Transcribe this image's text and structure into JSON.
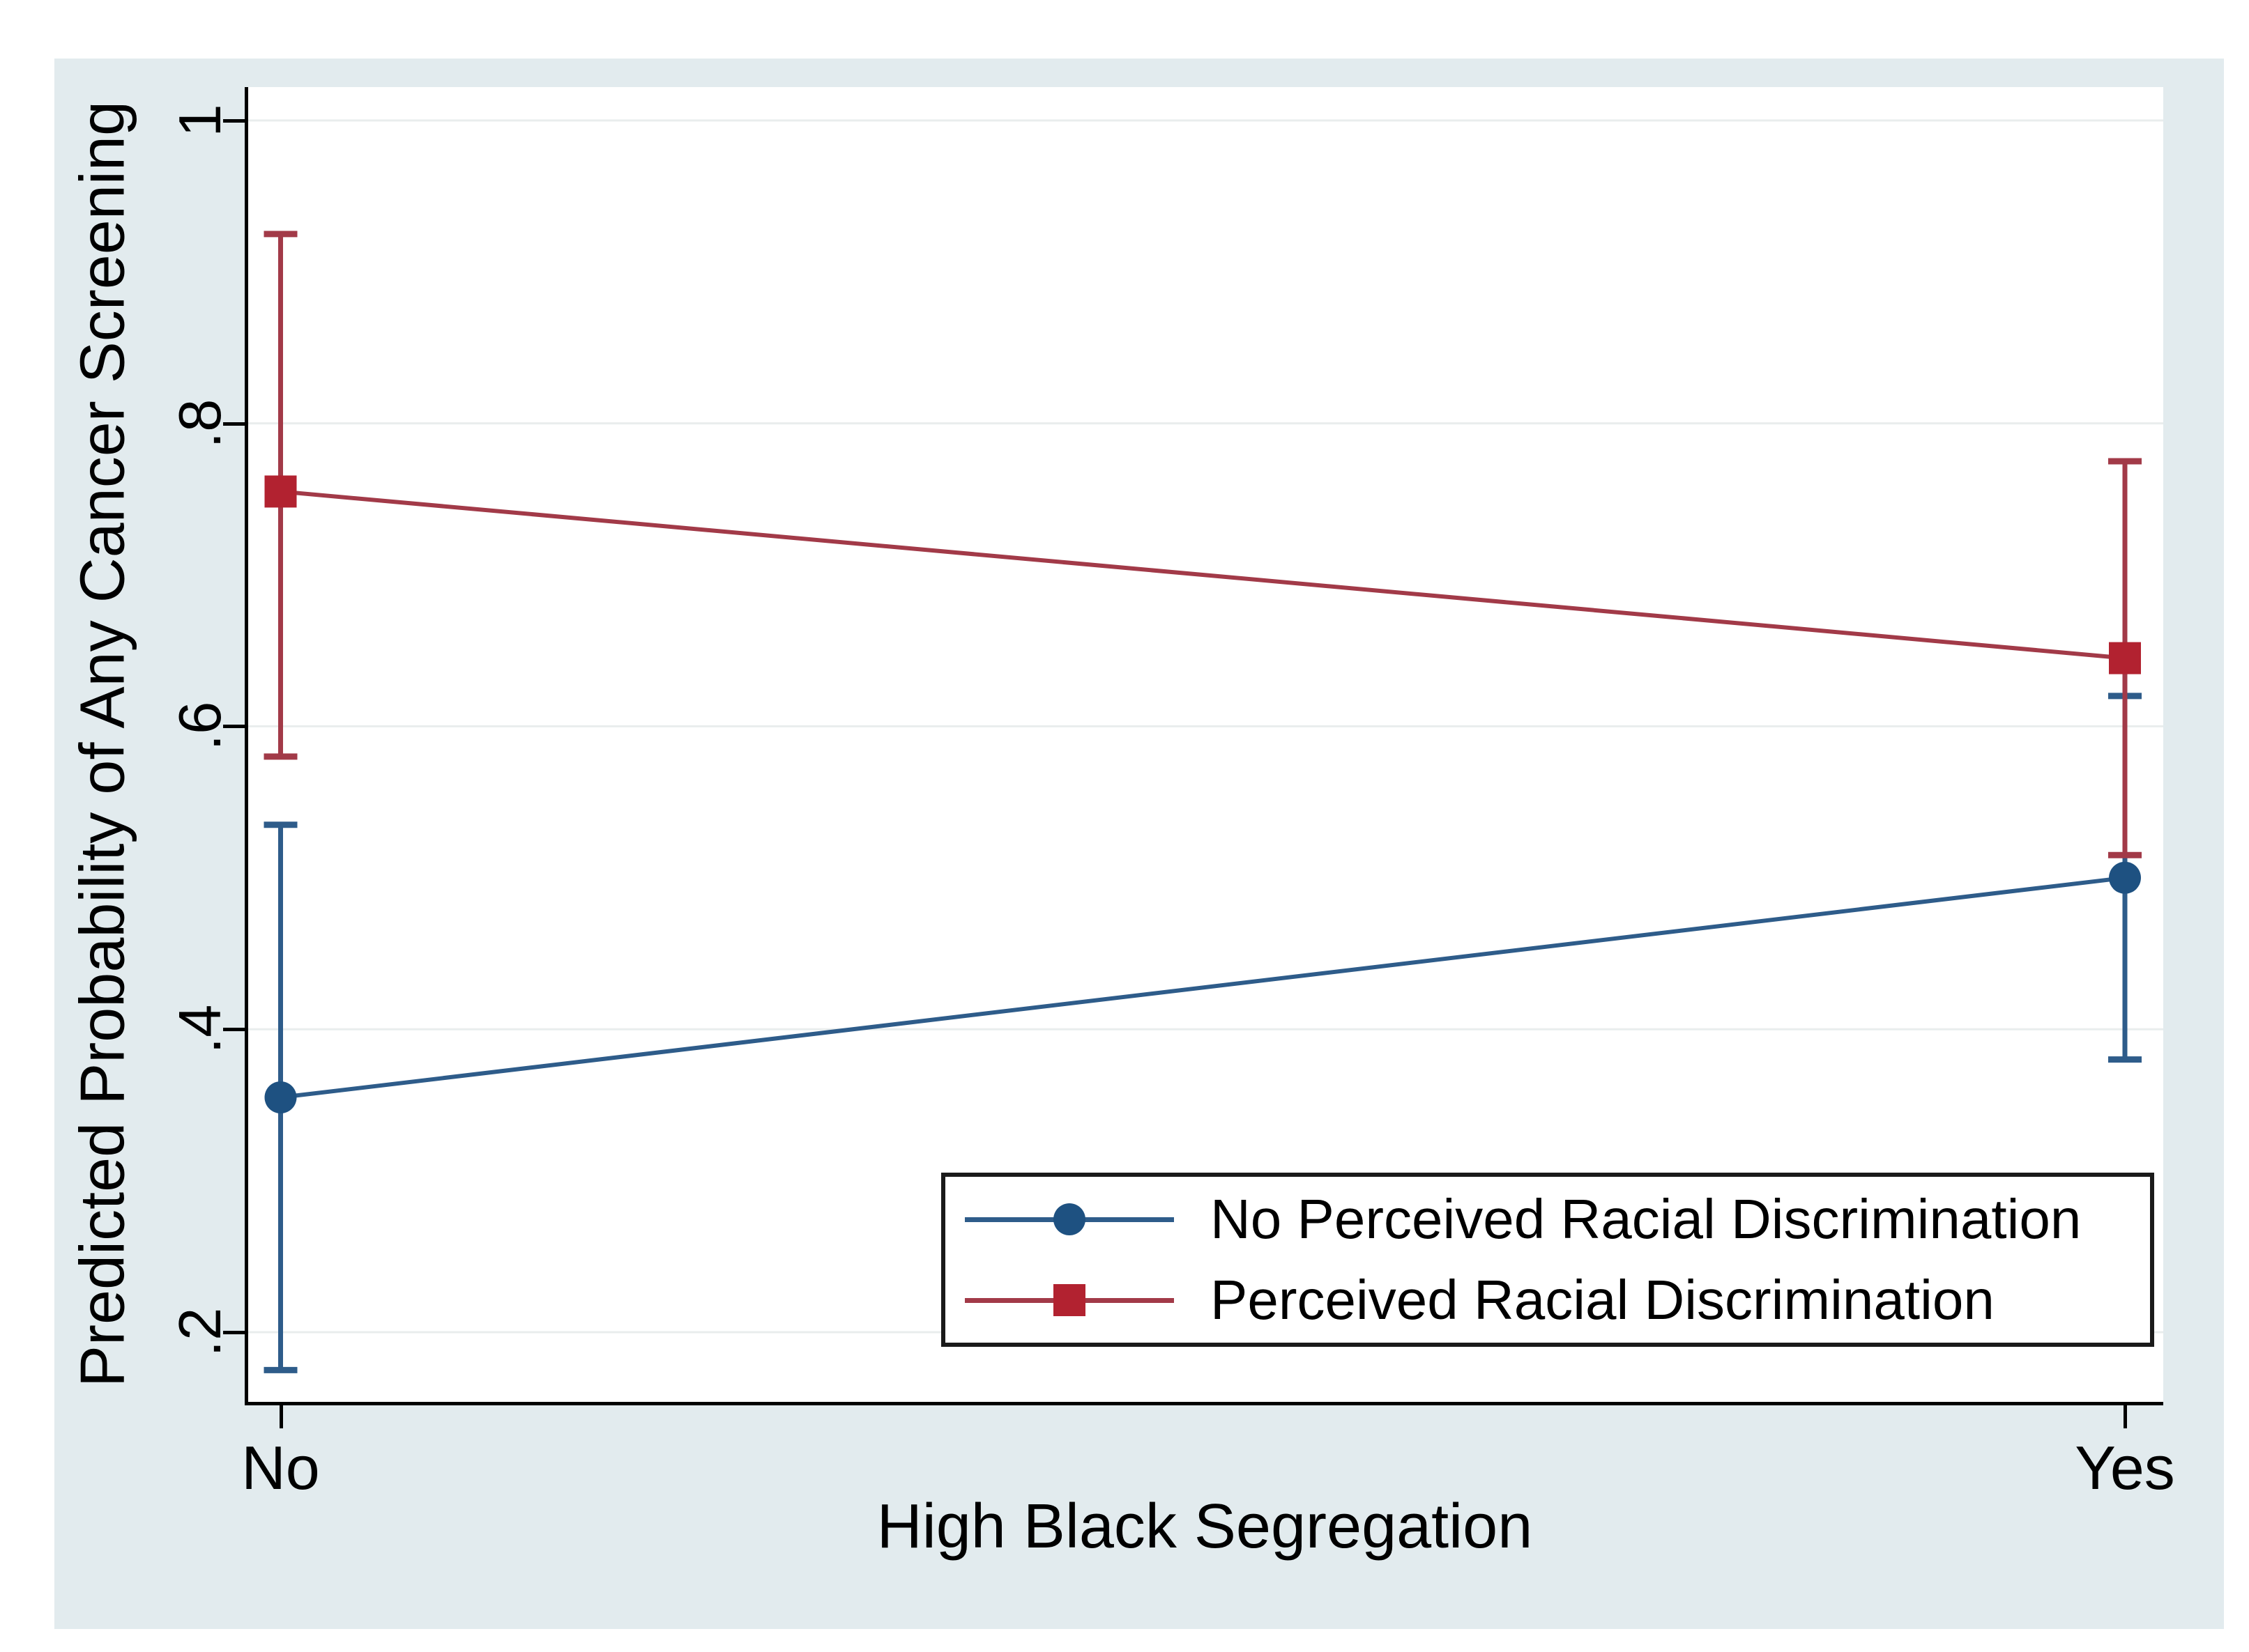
{
  "figure": {
    "background_color": "#e2ebee",
    "plot_background_color": "#ffffff",
    "grid_color": "#e9eded",
    "axis_color": "#000000",
    "legend_border_color": "#1a1a1a"
  },
  "chart_data": {
    "type": "line",
    "title": "",
    "xlabel": "High Black Segregation",
    "ylabel": "Predicted Probability of Any Cancer Screening",
    "categories": [
      "No",
      "Yes"
    ],
    "x_positions": [
      0.018,
      0.98
    ],
    "yticks": [
      1,
      0.8,
      0.6,
      0.4,
      0.2
    ],
    "ytick_labels": [
      "1",
      ".8",
      ".6",
      ".4",
      ".2"
    ],
    "ylim_top": 1.022,
    "ylim_bottom": 0.154,
    "grid": true,
    "legend_position": "inside-bottom-right",
    "series": [
      {
        "name": "No Perceived Racial Discrimination",
        "marker": "circle",
        "marker_color": "#1e5181",
        "line_color": "#2e5c8a",
        "values": [
          0.355,
          0.5
        ],
        "ci_low": [
          0.175,
          0.38
        ],
        "ci_high": [
          0.535,
          0.62
        ]
      },
      {
        "name": "Perceived Racial Discrimination",
        "marker": "square",
        "marker_color": "#b22230",
        "line_color": "#a23a48",
        "values": [
          0.755,
          0.645
        ],
        "ci_low": [
          0.58,
          0.515
        ],
        "ci_high": [
          0.925,
          0.775
        ]
      }
    ]
  }
}
